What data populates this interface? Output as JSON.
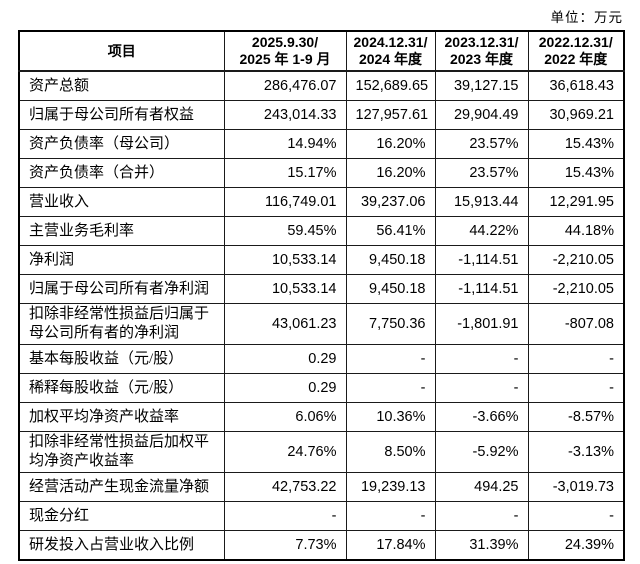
{
  "unit_label": "单位：万元",
  "table": {
    "columns": [
      {
        "line1": "项目",
        "line2": ""
      },
      {
        "line1": "2025.9.30/",
        "line2": "2025 年 1-9 月"
      },
      {
        "line1": "2024.12.31/",
        "line2": "2024 年度"
      },
      {
        "line1": "2023.12.31/",
        "line2": "2023 年度"
      },
      {
        "line1": "2022.12.31/",
        "line2": "2022 年度"
      }
    ],
    "rows": [
      {
        "label": "资产总额",
        "values": [
          "286,476.07",
          "152,689.65",
          "39,127.15",
          "36,618.43"
        ]
      },
      {
        "label": "归属于母公司所有者权益",
        "values": [
          "243,014.33",
          "127,957.61",
          "29,904.49",
          "30,969.21"
        ]
      },
      {
        "label": "资产负债率（母公司）",
        "values": [
          "14.94%",
          "16.20%",
          "23.57%",
          "15.43%"
        ]
      },
      {
        "label": "资产负债率（合并）",
        "values": [
          "15.17%",
          "16.20%",
          "23.57%",
          "15.43%"
        ]
      },
      {
        "label": "营业收入",
        "values": [
          "116,749.01",
          "39,237.06",
          "15,913.44",
          "12,291.95"
        ]
      },
      {
        "label": "主营业务毛利率",
        "values": [
          "59.45%",
          "56.41%",
          "44.22%",
          "44.18%"
        ]
      },
      {
        "label": "净利润",
        "values": [
          "10,533.14",
          "9,450.18",
          "-1,114.51",
          "-2,210.05"
        ]
      },
      {
        "label": "归属于母公司所有者净利润",
        "values": [
          "10,533.14",
          "9,450.18",
          "-1,114.51",
          "-2,210.05"
        ]
      },
      {
        "label": "扣除非经常性损益后归属于母公司所有者的净利润",
        "values": [
          "43,061.23",
          "7,750.36",
          "-1,801.91",
          "-807.08"
        ]
      },
      {
        "label": "基本每股收益（元/股）",
        "values": [
          "0.29",
          "-",
          "-",
          "-"
        ]
      },
      {
        "label": "稀释每股收益（元/股）",
        "values": [
          "0.29",
          "-",
          "-",
          "-"
        ]
      },
      {
        "label": "加权平均净资产收益率",
        "values": [
          "6.06%",
          "10.36%",
          "-3.66%",
          "-8.57%"
        ]
      },
      {
        "label": "扣除非经常性损益后加权平均净资产收益率",
        "values": [
          "24.76%",
          "8.50%",
          "-5.92%",
          "-3.13%"
        ]
      },
      {
        "label": "经营活动产生现金流量净额",
        "values": [
          "42,753.22",
          "19,239.13",
          "494.25",
          "-3,019.73"
        ]
      },
      {
        "label": "现金分红",
        "values": [
          "-",
          "-",
          "-",
          "-"
        ]
      },
      {
        "label": "研发投入占营业收入比例",
        "values": [
          "7.73%",
          "17.84%",
          "31.39%",
          "24.39%"
        ]
      }
    ]
  }
}
